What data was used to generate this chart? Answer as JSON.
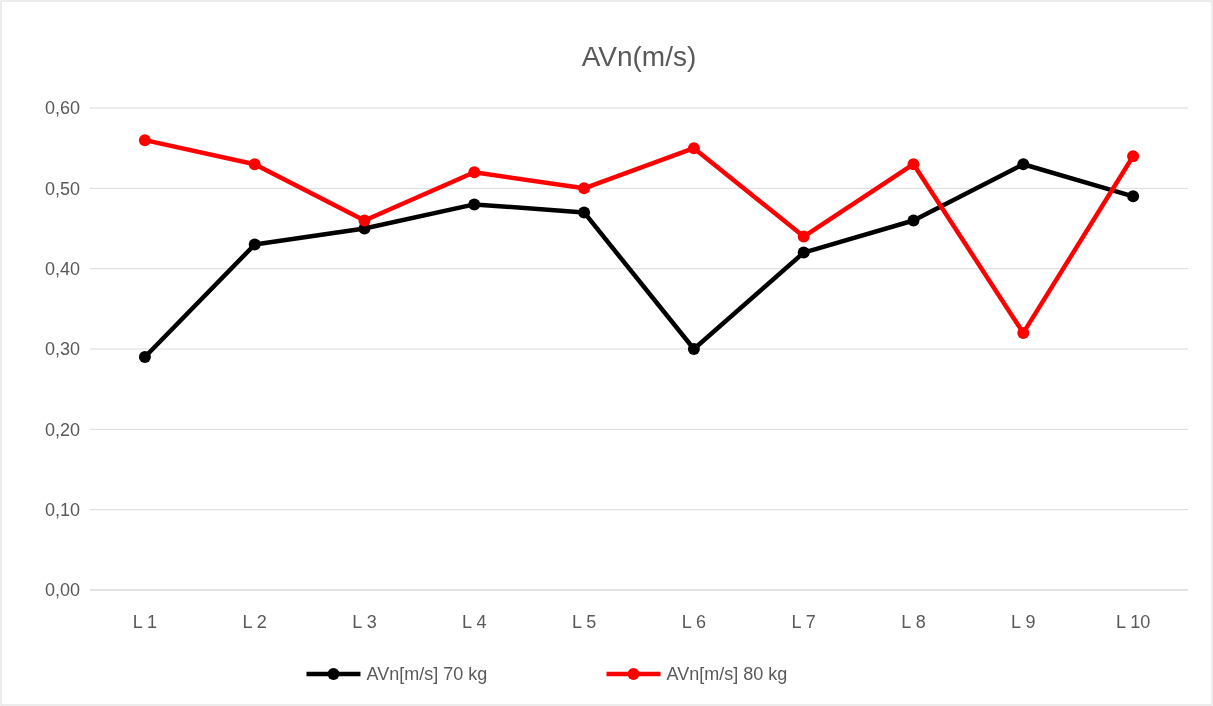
{
  "chart_data": {
    "type": "line",
    "title": "AVn(m/s)",
    "categories": [
      "L 1",
      "L 2",
      "L 3",
      "L 4",
      "L 5",
      "L 6",
      "L 7",
      "L 8",
      "L 9",
      "L 10"
    ],
    "series": [
      {
        "name": "AVn[m/s] 70 kg",
        "color": "#000000",
        "values": [
          0.29,
          0.43,
          0.45,
          0.48,
          0.47,
          0.3,
          0.42,
          0.46,
          0.53,
          0.49
        ]
      },
      {
        "name": "AVn[m/s] 80 kg",
        "color": "#ff0000",
        "values": [
          0.56,
          0.53,
          0.46,
          0.52,
          0.5,
          0.55,
          0.44,
          0.53,
          0.32,
          0.54
        ]
      }
    ],
    "ylim": [
      0,
      0.6
    ],
    "yticks": [
      {
        "value": 0,
        "label": "0,00"
      },
      {
        "value": 0.1,
        "label": "0,10"
      },
      {
        "value": 0.2,
        "label": "0,20"
      },
      {
        "value": 0.3,
        "label": "0,30"
      },
      {
        "value": 0.4,
        "label": "0,40"
      },
      {
        "value": 0.5,
        "label": "0,50"
      },
      {
        "value": 0.6,
        "label": "0,60"
      }
    ],
    "grid": "y",
    "legend": "bottom",
    "marker": "circle",
    "line_style": "solid"
  }
}
